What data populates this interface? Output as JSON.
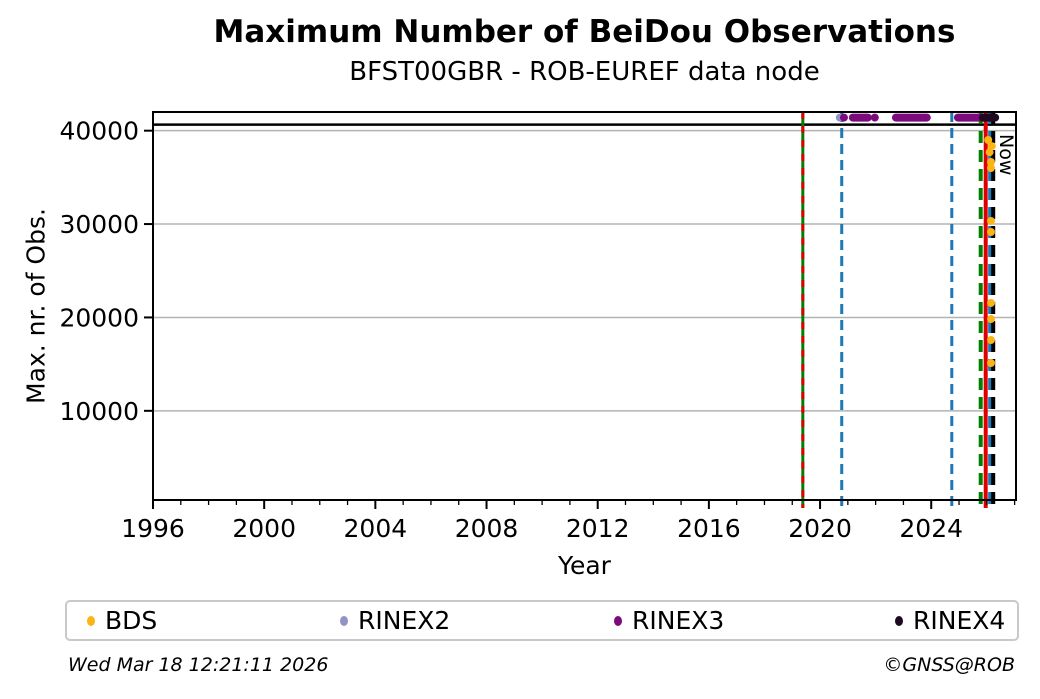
{
  "title": "Maximum Number of BeiDou Observations",
  "subtitle": "BFST00GBR - ROB-EUREF data node",
  "footer": {
    "timestamp": "Wed Mar 18 12:21:11 2026",
    "copyright": "©GNSS@ROB"
  },
  "legend": {
    "items": [
      {
        "label": "BDS",
        "color": "#fcb414"
      },
      {
        "label": "RINEX2",
        "color": "#9292c8"
      },
      {
        "label": "RINEX3",
        "color": "#7d0a7d"
      },
      {
        "label": "RINEX4",
        "color": "#1f0820"
      }
    ]
  },
  "chart_data": {
    "type": "scatter",
    "title": "Maximum Number of BeiDou Observations",
    "subtitle": "BFST00GBR - ROB-EUREF data node",
    "xlabel": "Year",
    "ylabel": "Max. nr. of Obs.",
    "xlim": [
      1996,
      2027.05
    ],
    "ylim": [
      450,
      42000
    ],
    "xticks_major": [
      1996,
      2000,
      2004,
      2008,
      2012,
      2016,
      2020,
      2024
    ],
    "xticks_minor_step": 1,
    "yticks": [
      10000,
      20000,
      30000,
      40000
    ],
    "grid": "horizontal-gray",
    "grid_color": "#b3b3b3",
    "hline": {
      "y": 40650,
      "color": "#000000",
      "note": "horizontal max line near top"
    },
    "now_label": {
      "text": "Now",
      "x": 2026.23
    },
    "vlines": [
      {
        "x": 2019.38,
        "color": "#008000",
        "style": "solid",
        "width": 3
      },
      {
        "x": 2019.38,
        "color": "#dd0000",
        "style": "dashed",
        "dash": "7 7",
        "width": 3
      },
      {
        "x": 2020.78,
        "color": "#1f77b4",
        "style": "dashed",
        "dash": "10 6",
        "width": 3
      },
      {
        "x": 2024.74,
        "color": "#1f77b4",
        "style": "dashed",
        "dash": "10 6",
        "width": 3
      },
      {
        "x": 2025.78,
        "color": "#008000",
        "style": "dashed",
        "dash": "12 7",
        "width": 4
      },
      {
        "x": 2025.96,
        "color": "#dd0000",
        "style": "solid",
        "width": 4
      },
      {
        "x": 2026.12,
        "color": "#1f77b4",
        "style": "dashed",
        "dash": "12 7",
        "width": 4
      },
      {
        "x": 2026.23,
        "color": "#000000",
        "style": "dashed",
        "dash": "12 7",
        "width": 4
      }
    ],
    "series": [
      {
        "name": "BDS",
        "color": "#fcb414",
        "points": [
          [
            2026.05,
            39000
          ],
          [
            2026.18,
            38350
          ],
          [
            2026.1,
            37700
          ],
          [
            2026.15,
            36650
          ],
          [
            2026.15,
            36000
          ],
          [
            2026.15,
            30330
          ],
          [
            2026.15,
            29150
          ],
          [
            2026.15,
            21550
          ],
          [
            2026.15,
            19830
          ],
          [
            2026.15,
            17580
          ],
          [
            2026.15,
            15120
          ]
        ],
        "runs": []
      },
      {
        "name": "RINEX2",
        "color": "#9292c8",
        "points": [
          [
            2020.71,
            41400
          ]
        ],
        "runs": []
      },
      {
        "name": "RINEX3",
        "color": "#7d0a7d",
        "points": [
          [
            2020.86,
            41400
          ],
          [
            2021.97,
            41400
          ]
        ],
        "runs": [
          [
            2021.18,
            2021.72,
            41400
          ],
          [
            2022.73,
            2023.84,
            41400
          ],
          [
            2024.96,
            2025.86,
            41400
          ]
        ]
      },
      {
        "name": "RINEX4",
        "color": "#1f0820",
        "points": [],
        "runs": [
          [
            2025.86,
            2026.3,
            41400
          ]
        ]
      }
    ]
  }
}
